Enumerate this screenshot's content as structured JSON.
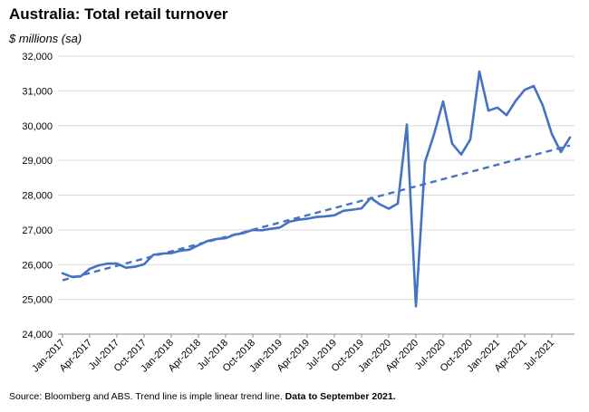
{
  "chart_data": {
    "type": "line",
    "title": "Australia: Total retail turnover",
    "ylabel": "$ millions (sa)",
    "ylim": [
      24000,
      32000
    ],
    "yticks": [
      24000,
      25000,
      26000,
      27000,
      28000,
      29000,
      30000,
      31000,
      32000
    ],
    "ytick_labels": [
      "24,000",
      "25,000",
      "26,000",
      "27,000",
      "28,000",
      "29,000",
      "30,000",
      "31,000",
      "32,000"
    ],
    "x_start": "Jan-2017",
    "x_end": "Sep-2021",
    "xtick_labels": [
      "Jan-2017",
      "Apr-2017",
      "Jul-2017",
      "Oct-2017",
      "Jan-2018",
      "Apr-2018",
      "Jul-2018",
      "Oct-2018",
      "Jan-2019",
      "Apr-2019",
      "Jul-2019",
      "Oct-2019",
      "Jan-2020",
      "Apr-2020",
      "Jul-2020",
      "Oct-2020",
      "Jan-2021",
      "Apr-2021",
      "Jul-2021"
    ],
    "grid": true,
    "legend": "none",
    "series": [
      {
        "type": "line",
        "color": "#4472c4",
        "values": [
          25750,
          25650,
          25660,
          25880,
          25980,
          26030,
          26030,
          25910,
          25940,
          26010,
          26280,
          26320,
          26330,
          26400,
          26430,
          26560,
          26680,
          26740,
          26760,
          26860,
          26910,
          27000,
          26990,
          27030,
          27070,
          27230,
          27290,
          27320,
          27370,
          27390,
          27420,
          27550,
          27580,
          27620,
          27920,
          27740,
          27610,
          27760,
          30030,
          24800,
          28950,
          29750,
          30700,
          29480,
          29170,
          29600,
          31560,
          30430,
          30520,
          30300,
          30710,
          31030,
          31140,
          30580,
          29760,
          29240,
          29660
        ]
      },
      {
        "type": "trend",
        "color": "#4472c4",
        "dash": true,
        "start": 25550,
        "end": 29430
      }
    ]
  },
  "source": {
    "text": "Source: Bloomberg and ABS.  Trend line is imple linear trend line. ",
    "bold_text": "Data to September 2021."
  }
}
